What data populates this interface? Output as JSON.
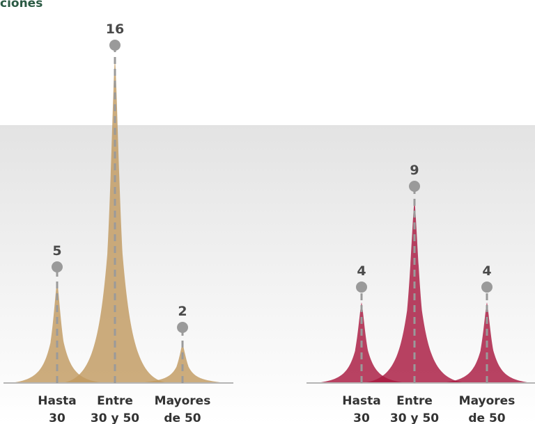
{
  "heading": "ciones",
  "colors": {
    "group_1": "#c19a60",
    "group_2": "#a8193f",
    "marker": "#9a9a9a"
  },
  "chart_data": [
    {
      "type": "area",
      "series_color": "#c19a60",
      "categories": [
        [
          "Hasta",
          "30"
        ],
        [
          "Entre",
          "30 y 50"
        ],
        [
          "Mayores",
          "de 50"
        ]
      ],
      "values": [
        5,
        16,
        2
      ],
      "grid": false
    },
    {
      "type": "area",
      "series_color": "#a8193f",
      "categories": [
        [
          "Hasta",
          "30"
        ],
        [
          "Entre",
          "30 y 50"
        ],
        [
          "Mayores",
          "de 50"
        ]
      ],
      "values": [
        4,
        9,
        4
      ],
      "grid": false
    }
  ]
}
